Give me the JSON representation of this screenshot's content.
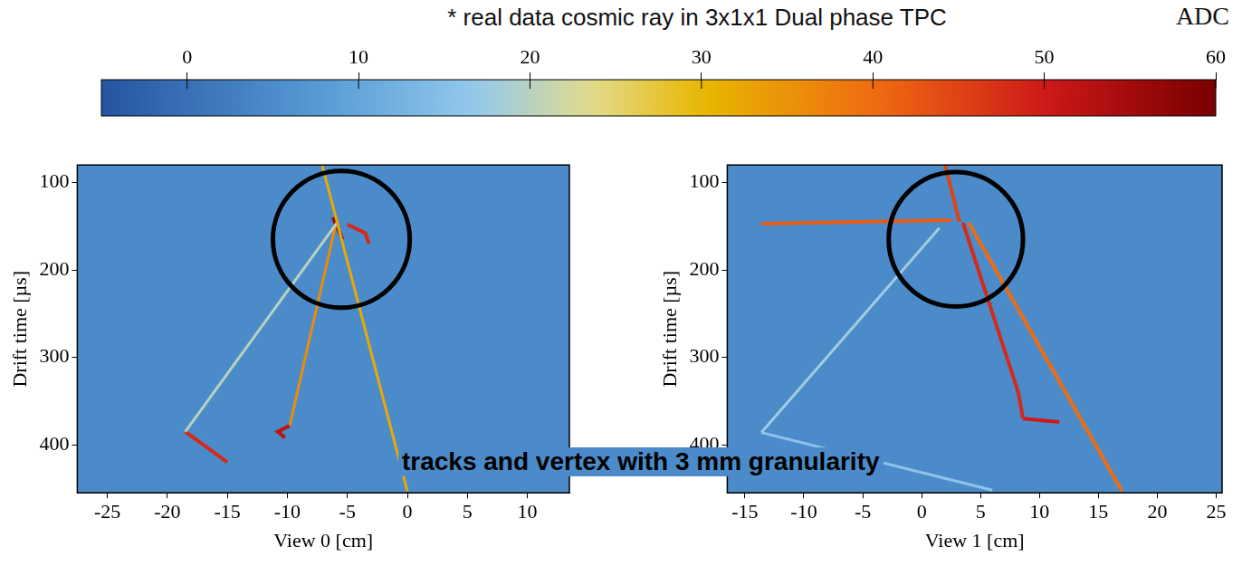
{
  "title": "* real data cosmic ray in 3x1x1 Dual phase TPC",
  "annotation": "tracks and vertex with 3 mm granularity",
  "color_bar": {
    "label": "ADC",
    "range": [
      -5,
      60
    ],
    "ticks": [
      0,
      10,
      20,
      30,
      40,
      50,
      60
    ]
  },
  "chart_data": [
    {
      "type": "line",
      "x_label": "View 0 [cm]",
      "y_label": "Drift time [µs]",
      "xlim": [
        -27.5,
        13.5
      ],
      "ylim": [
        80,
        455
      ],
      "xticks": [
        -25,
        -20,
        -15,
        -10,
        -5,
        0,
        5,
        10
      ],
      "yticks": [
        100,
        200,
        300,
        400
      ],
      "grid": false,
      "background_adc": 5,
      "circles": [
        {
          "x": -5.5,
          "y": 165,
          "radius": 5.7
        }
      ],
      "series": [
        {
          "adc": 32,
          "x": [
            -7.1,
            0.0
          ],
          "y": [
            80,
            453
          ]
        },
        {
          "adc": 20,
          "x": [
            -5.8,
            -18.5
          ],
          "y": [
            145,
            385
          ]
        },
        {
          "adc": 48,
          "x": [
            -18.5,
            -15.0
          ],
          "y": [
            385,
            420
          ]
        },
        {
          "adc": 36,
          "x": [
            -6.0,
            -9.8
          ],
          "y": [
            150,
            378
          ]
        },
        {
          "adc": 52,
          "x": [
            -9.8,
            -10.8,
            -10.2
          ],
          "y": [
            378,
            385,
            392
          ]
        },
        {
          "adc": 56,
          "x": [
            -6.2,
            -5.4
          ],
          "y": [
            140,
            165
          ]
        },
        {
          "adc": 48,
          "x": [
            -5.0,
            -3.5,
            -3.2
          ],
          "y": [
            148,
            158,
            170
          ]
        }
      ]
    },
    {
      "type": "line",
      "x_label": "View 1 [cm]",
      "y_label": "Drift time [µs]",
      "xlim": [
        -16.5,
        25.5
      ],
      "ylim": [
        80,
        455
      ],
      "xticks": [
        -15,
        -10,
        -5,
        0,
        5,
        10,
        15,
        20,
        25
      ],
      "yticks": [
        100,
        200,
        300,
        400
      ],
      "grid": false,
      "background_adc": 5,
      "circles": [
        {
          "x": 2.9,
          "y": 165,
          "radius": 5.7
        }
      ],
      "series": [
        {
          "adc": 45,
          "x": [
            2.0,
            3.2
          ],
          "y": [
            80,
            145
          ]
        },
        {
          "adc": 42,
          "x": [
            -13.6,
            2.5
          ],
          "y": [
            147,
            143
          ]
        },
        {
          "adc": 48,
          "x": [
            3.5,
            8.2,
            8.6
          ],
          "y": [
            146,
            340,
            370
          ]
        },
        {
          "adc": 50,
          "x": [
            8.6,
            11.7
          ],
          "y": [
            370,
            374
          ]
        },
        {
          "adc": 40,
          "x": [
            4.0,
            17.0
          ],
          "y": [
            146,
            453
          ]
        },
        {
          "adc": 18,
          "x": [
            1.5,
            -13.6
          ],
          "y": [
            152,
            386
          ]
        },
        {
          "adc": 16,
          "x": [
            -13.6,
            6.0
          ],
          "y": [
            386,
            452
          ]
        }
      ]
    }
  ]
}
